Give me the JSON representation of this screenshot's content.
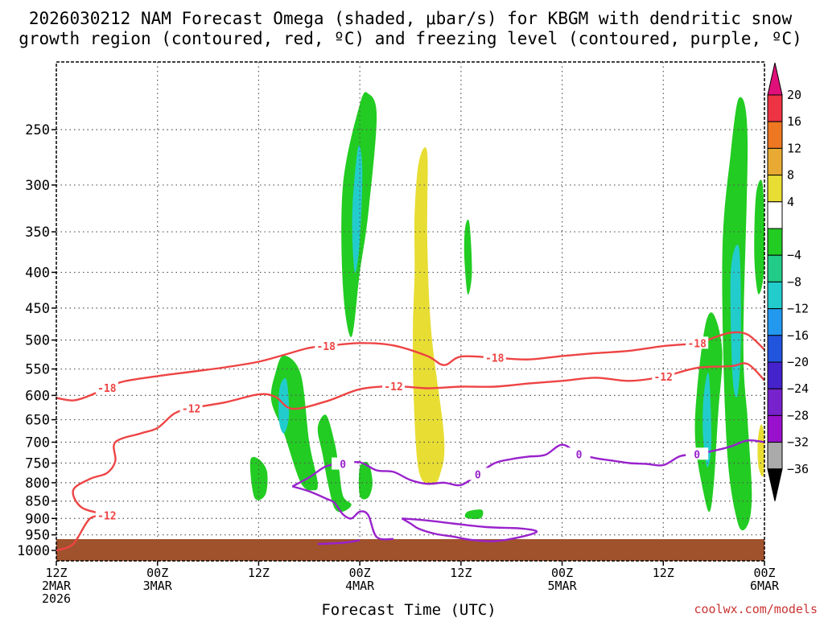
{
  "chart_data": {
    "type": "contour",
    "title_line1": "2026030212 NAM Forecast Omega (shaded, μbar/s) for KBGM with dendritic snow",
    "title_line2": "growth region (contoured, red, ºC) and freezing level (contoured, purple, ºC)",
    "xlabel": "Forecast Time (UTC)",
    "credit": "coolwx.com/models",
    "x_ticks": [
      {
        "hour": 0,
        "l1": "12Z",
        "l2": "2MAR",
        "l3": "2026"
      },
      {
        "hour": 12,
        "l1": "00Z",
        "l2": "3MAR",
        "l3": ""
      },
      {
        "hour": 24,
        "l1": "12Z",
        "l2": "",
        "l3": ""
      },
      {
        "hour": 36,
        "l1": "00Z",
        "l2": "4MAR",
        "l3": ""
      },
      {
        "hour": 48,
        "l1": "12Z",
        "l2": "",
        "l3": ""
      },
      {
        "hour": 60,
        "l1": "00Z",
        "l2": "5MAR",
        "l3": ""
      },
      {
        "hour": 72,
        "l1": "12Z",
        "l2": "",
        "l3": ""
      },
      {
        "hour": 84,
        "l1": "00Z",
        "l2": "6MAR",
        "l3": ""
      }
    ],
    "x_range_hours": [
      0,
      84
    ],
    "y_ticks_hpa": [
      250,
      300,
      350,
      400,
      450,
      500,
      550,
      600,
      650,
      700,
      750,
      800,
      850,
      900,
      950,
      1000
    ],
    "y_range_hpa": [
      200,
      1035
    ],
    "colorbar": {
      "labels": [
        "20",
        "16",
        "12",
        "8",
        "4",
        "−4",
        "−8",
        "−12",
        "−16",
        "−20",
        "−24",
        "−28",
        "−32",
        "−36"
      ],
      "colors": [
        "#ee3344",
        "#ee7722",
        "#e8aa33",
        "#e8dd33",
        "#ffffff",
        "#22cc22",
        "#22cc88",
        "#22cccc",
        "#2299ee",
        "#2255dd",
        "#4422cc",
        "#7722cc",
        "#9911cc",
        "#aaaaaa"
      ],
      "top_color": "#e0107a",
      "bottom_color": "#000000"
    },
    "dgz_contours": [
      {
        "label": "-18",
        "points": [
          [
            0,
            605
          ],
          [
            2,
            610
          ],
          [
            4,
            600
          ],
          [
            6,
            585
          ],
          [
            8,
            573
          ],
          [
            12,
            563
          ],
          [
            16,
            555
          ],
          [
            20,
            547
          ],
          [
            24,
            537
          ],
          [
            27,
            525
          ],
          [
            30,
            513
          ],
          [
            32,
            510
          ],
          [
            36,
            505
          ],
          [
            40,
            509
          ],
          [
            44,
            527
          ],
          [
            46,
            543
          ],
          [
            48,
            528
          ],
          [
            52,
            530
          ],
          [
            56,
            533
          ],
          [
            60,
            527
          ],
          [
            64,
            522
          ],
          [
            68,
            518
          ],
          [
            72,
            510
          ],
          [
            76,
            505
          ],
          [
            78,
            496
          ],
          [
            80,
            488
          ],
          [
            82,
            491
          ],
          [
            84,
            516
          ]
        ]
      },
      {
        "label": "-12",
        "points": [
          [
            0,
            1000
          ],
          [
            2,
            979
          ],
          [
            4,
            900
          ],
          [
            6,
            891
          ],
          [
            3,
            868
          ],
          [
            2,
            820
          ],
          [
            4,
            790
          ],
          [
            6,
            775
          ],
          [
            7,
            745
          ],
          [
            7,
            700
          ],
          [
            10,
            680
          ],
          [
            12,
            668
          ],
          [
            14,
            637
          ],
          [
            16,
            626
          ],
          [
            20,
            614
          ],
          [
            24,
            598
          ],
          [
            26,
            603
          ],
          [
            28,
            627
          ],
          [
            32,
            612
          ],
          [
            36,
            588
          ],
          [
            40,
            582
          ],
          [
            44,
            586
          ],
          [
            48,
            583
          ],
          [
            52,
            583
          ],
          [
            56,
            577
          ],
          [
            60,
            572
          ],
          [
            64,
            566
          ],
          [
            68,
            572
          ],
          [
            72,
            564
          ],
          [
            76,
            548
          ],
          [
            80,
            545
          ],
          [
            82,
            541
          ],
          [
            84,
            571
          ]
        ]
      }
    ],
    "freezing_contours": [
      {
        "label": "0",
        "points": [
          [
            28,
            810
          ],
          [
            30,
            786
          ],
          [
            32,
            758
          ],
          [
            34,
            752
          ],
          [
            36,
            748
          ],
          [
            38,
            768
          ],
          [
            40,
            772
          ],
          [
            42,
            793
          ],
          [
            44,
            803
          ],
          [
            46,
            800
          ],
          [
            48,
            806
          ],
          [
            50,
            778
          ],
          [
            52,
            750
          ],
          [
            54,
            740
          ],
          [
            56,
            734
          ],
          [
            58,
            730
          ],
          [
            60,
            706
          ],
          [
            62,
            728
          ],
          [
            64,
            738
          ],
          [
            66,
            744
          ],
          [
            68,
            750
          ],
          [
            70,
            752
          ],
          [
            72,
            755
          ],
          [
            74,
            733
          ],
          [
            76,
            728
          ],
          [
            78,
            720
          ],
          [
            80,
            710
          ],
          [
            82,
            696
          ],
          [
            84,
            700
          ]
        ]
      },
      {
        "label": "",
        "points": [
          [
            28,
            810
          ],
          [
            30,
            823
          ],
          [
            32,
            843
          ],
          [
            33,
            855
          ],
          [
            34,
            888
          ],
          [
            35,
            900
          ],
          [
            36,
            880
          ],
          [
            37,
            890
          ],
          [
            38,
            957
          ],
          [
            40,
            963
          ]
        ]
      },
      {
        "label": "",
        "points": [
          [
            41,
            900
          ],
          [
            42,
            915
          ],
          [
            43,
            931
          ],
          [
            45,
            947
          ],
          [
            47,
            955
          ],
          [
            49,
            965
          ],
          [
            52,
            970
          ],
          [
            55,
            957
          ],
          [
            57,
            940
          ],
          [
            55,
            930
          ],
          [
            51,
            926
          ],
          [
            47,
            915
          ],
          [
            44,
            906
          ],
          [
            41,
            900
          ]
        ]
      },
      {
        "label": "",
        "points": [
          [
            36,
            967
          ],
          [
            34,
            975
          ],
          [
            31,
            979
          ]
        ]
      }
    ],
    "omega_regions": [
      {
        "value": -6,
        "points": [
          [
            36,
            230
          ],
          [
            37,
            222
          ],
          [
            38,
            240
          ],
          [
            37,
            330
          ],
          [
            36,
            400
          ],
          [
            35,
            495
          ],
          [
            34,
            420
          ],
          [
            34,
            300
          ]
        ]
      },
      {
        "value": -14,
        "points": [
          [
            35.8,
            265
          ],
          [
            36.3,
            285
          ],
          [
            36,
            360
          ],
          [
            35.4,
            400
          ],
          [
            35.1,
            330
          ]
        ]
      },
      {
        "value": -6,
        "points": [
          [
            26,
            557
          ],
          [
            27,
            526
          ],
          [
            29,
            560
          ],
          [
            30,
            700
          ],
          [
            31,
            800
          ],
          [
            30.5,
            820
          ],
          [
            29,
            800
          ],
          [
            27,
            680
          ],
          [
            25.5,
            610
          ]
        ]
      },
      {
        "value": -14,
        "points": [
          [
            26.5,
            585
          ],
          [
            27.3,
            570
          ],
          [
            27.6,
            640
          ],
          [
            27,
            680
          ],
          [
            26.4,
            650
          ]
        ]
      },
      {
        "value": -6,
        "points": [
          [
            31,
            668
          ],
          [
            32,
            640
          ],
          [
            33,
            700
          ],
          [
            33.5,
            760
          ],
          [
            34,
            835
          ],
          [
            35,
            860
          ],
          [
            34,
            880
          ],
          [
            33,
            870
          ],
          [
            32.2,
            800
          ],
          [
            31.6,
            730
          ]
        ]
      },
      {
        "value": -6,
        "points": [
          [
            23,
            745
          ],
          [
            24,
            740
          ],
          [
            25,
            772
          ],
          [
            24.8,
            832
          ],
          [
            23.5,
            840
          ]
        ]
      },
      {
        "value": -6,
        "points": [
          [
            36,
            760
          ],
          [
            37,
            750
          ],
          [
            37.5,
            800
          ],
          [
            37,
            840
          ],
          [
            36,
            835
          ]
        ]
      },
      {
        "value": -6,
        "points": [
          [
            48.8,
            880
          ],
          [
            50.5,
            875
          ],
          [
            50.3,
            900
          ],
          [
            48.6,
            898
          ]
        ]
      },
      {
        "value": -6,
        "points": [
          [
            48.5,
            345
          ],
          [
            49,
            340
          ],
          [
            49.3,
            400
          ],
          [
            48.8,
            430
          ],
          [
            48.4,
            380
          ]
        ]
      },
      {
        "value": -6,
        "points": [
          [
            79,
            380
          ],
          [
            80,
            270
          ],
          [
            81,
            225
          ],
          [
            82,
            258
          ],
          [
            81.5,
            500
          ],
          [
            82,
            650
          ],
          [
            82.5,
            830
          ],
          [
            82,
            920
          ],
          [
            80.8,
            910
          ],
          [
            79.5,
            700
          ]
        ]
      },
      {
        "value": -14,
        "points": [
          [
            80,
            400
          ],
          [
            81,
            370
          ],
          [
            81.2,
            500
          ],
          [
            80.8,
            600
          ],
          [
            80.2,
            560
          ]
        ]
      },
      {
        "value": -6,
        "points": [
          [
            76,
            590
          ],
          [
            77,
            475
          ],
          [
            78,
            460
          ],
          [
            79,
            520
          ],
          [
            78.5,
            640
          ],
          [
            78,
            800
          ],
          [
            77.5,
            880
          ],
          [
            76.8,
            830
          ],
          [
            75.8,
            700
          ]
        ]
      },
      {
        "value": -14,
        "points": [
          [
            76.8,
            600
          ],
          [
            77.4,
            560
          ],
          [
            77.7,
            700
          ],
          [
            77.2,
            760
          ],
          [
            76.7,
            680
          ]
        ]
      },
      {
        "value": -6,
        "points": [
          [
            83,
            310
          ],
          [
            83.8,
            300
          ],
          [
            84,
            390
          ],
          [
            83.3,
            430
          ],
          [
            82.8,
            380
          ]
        ]
      },
      {
        "value": 6,
        "points": [
          [
            42.5,
            330
          ],
          [
            43,
            278
          ],
          [
            44,
            270
          ],
          [
            44,
            360
          ],
          [
            44.5,
            490
          ],
          [
            46,
            690
          ],
          [
            45.5,
            780
          ],
          [
            44.5,
            805
          ],
          [
            43,
            770
          ],
          [
            42.4,
            610
          ],
          [
            42.3,
            480
          ],
          [
            42.5,
            400
          ]
        ]
      },
      {
        "value": 6,
        "points": [
          [
            83.2,
            700
          ],
          [
            83.6,
            660
          ],
          [
            84,
            690
          ],
          [
            83.9,
            780
          ],
          [
            83.3,
            760
          ]
        ]
      }
    ]
  }
}
